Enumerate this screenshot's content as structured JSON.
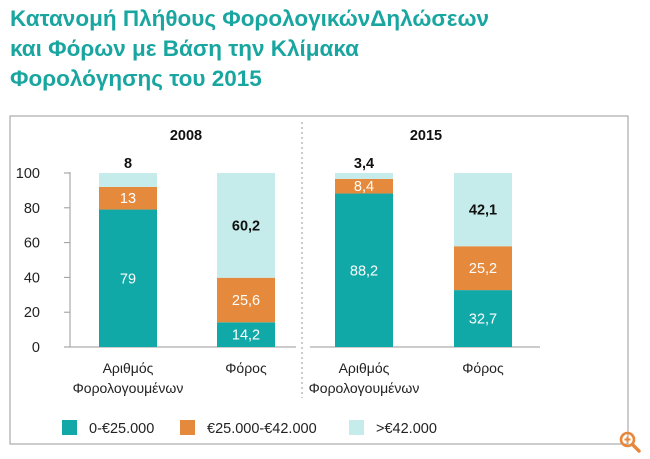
{
  "title_lines": [
    "Κατανομή Πλήθους ΦορολογικώνΔηλώσεων",
    "και Φόρων με Βάση την Κλίμακα",
    "Φορολόγησης του 2015"
  ],
  "chart_data": {
    "type": "bar",
    "stacked": true,
    "title": "Κατανομή Πλήθους ΦορολογικώνΔηλώσεων και Φόρων με Βάση την Κλίμακα Φορολόγησης του 2015",
    "ylim": [
      0,
      100
    ],
    "yticks": [
      0,
      20,
      40,
      60,
      80,
      100
    ],
    "groups": [
      {
        "name": "2008",
        "categories": [
          [
            "Αριθμός",
            "Φορολογουμένων"
          ],
          [
            "Φόρος"
          ]
        ],
        "stacks": [
          [
            79,
            13,
            8
          ],
          [
            14.2,
            25.6,
            60.2
          ]
        ],
        "labels": [
          [
            "79",
            "13",
            "8"
          ],
          [
            "14,2",
            "25,6",
            "60,2"
          ]
        ]
      },
      {
        "name": "2015",
        "categories": [
          [
            "Αριθμός",
            "Φορολογουμένων"
          ],
          [
            "Φόρος"
          ]
        ],
        "stacks": [
          [
            88.2,
            8.4,
            3.4
          ],
          [
            32.7,
            25.2,
            42.1
          ]
        ],
        "labels": [
          [
            "88,2",
            "8,4",
            "3,4"
          ],
          [
            "32,7",
            "25,2",
            "42,1"
          ]
        ]
      }
    ],
    "series": [
      {
        "name": "0-€25.000",
        "color": "#11a8a8"
      },
      {
        "name": "€25.000-€42.000",
        "color": "#e58a3c"
      },
      {
        "name": ">€42.000",
        "color": "#c5ecea"
      }
    ]
  },
  "colors": {
    "title": "#1aa6a0",
    "frame": "#9a9a9a",
    "zoom": "#e8863a"
  },
  "zoom_icon": "zoom-in-icon"
}
